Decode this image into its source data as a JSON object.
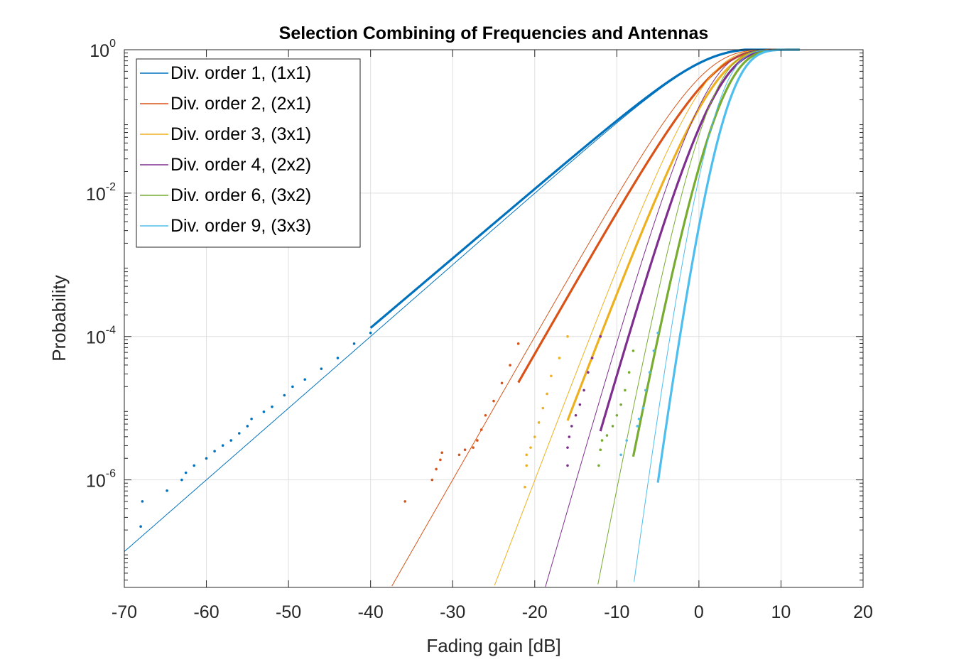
{
  "chart_data": {
    "type": "line",
    "title": "Selection Combining of Frequencies and Antennas",
    "xlabel": "Fading gain [dB]",
    "ylabel": "Probability",
    "xlim": [
      -70,
      20
    ],
    "ylim_log10": [
      -7.5,
      0
    ],
    "y_scale": "log",
    "grid": true,
    "legend_position": "top-left",
    "x_ticks": [
      "-70",
      "-60",
      "-50",
      "-40",
      "-30",
      "-20",
      "-10",
      "0",
      "10",
      "20"
    ],
    "y_ticks": [
      {
        "base": "10",
        "exp": "0"
      },
      {
        "base": "10",
        "exp": "-2"
      },
      {
        "base": "10",
        "exp": "-4"
      },
      {
        "base": "10",
        "exp": "-6"
      }
    ],
    "series": [
      {
        "name": "Div. order 1, (1x1)",
        "order": 1,
        "color": "#0072BD",
        "simulated_points": [
          [
            -68.0,
            -6.65
          ],
          [
            -67.8,
            -6.3
          ],
          [
            -64.8,
            -6.15
          ],
          [
            -63.0,
            -6.0
          ],
          [
            -62.5,
            -5.9
          ],
          [
            -61.5,
            -5.8
          ],
          [
            -60.0,
            -5.7
          ],
          [
            -59.0,
            -5.6
          ],
          [
            -58.0,
            -5.52
          ],
          [
            -57.0,
            -5.45
          ],
          [
            -56.0,
            -5.35
          ],
          [
            -55.0,
            -5.25
          ],
          [
            -54.5,
            -5.15
          ],
          [
            -53.0,
            -5.05
          ],
          [
            -52.0,
            -4.98
          ],
          [
            -50.5,
            -4.82
          ],
          [
            -49.5,
            -4.7
          ],
          [
            -48.0,
            -4.6
          ],
          [
            -46.0,
            -4.45
          ],
          [
            -44.0,
            -4.3
          ],
          [
            -42.0,
            -4.1
          ],
          [
            -40.0,
            -3.95
          ]
        ]
      },
      {
        "name": "Div. order 2, (2x1)",
        "order": 2,
        "color": "#D95319",
        "simulated_points": [
          [
            -35.8,
            -6.3
          ],
          [
            -32.5,
            -6.0
          ],
          [
            -32.0,
            -5.85
          ],
          [
            -31.5,
            -5.72
          ],
          [
            -31.3,
            -5.62
          ],
          [
            -29.2,
            -5.65
          ],
          [
            -28.5,
            -5.58
          ],
          [
            -27.5,
            -5.55
          ],
          [
            -27.0,
            -5.45
          ],
          [
            -26.5,
            -5.3
          ],
          [
            -26.0,
            -5.1
          ],
          [
            -25.0,
            -4.9
          ],
          [
            -24.0,
            -4.65
          ],
          [
            -23.0,
            -4.4
          ],
          [
            -22.0,
            -4.1
          ]
        ]
      },
      {
        "name": "Div. order 3, (3x1)",
        "order": 3,
        "color": "#EDB120",
        "simulated_points": [
          [
            -21.2,
            -6.1
          ],
          [
            -21.0,
            -5.8
          ],
          [
            -21.0,
            -5.65
          ],
          [
            -20.5,
            -5.55
          ],
          [
            -20.0,
            -5.4
          ],
          [
            -19.5,
            -5.2
          ],
          [
            -19.0,
            -5.0
          ],
          [
            -18.5,
            -4.8
          ],
          [
            -18.0,
            -4.55
          ],
          [
            -17.0,
            -4.3
          ],
          [
            -16.0,
            -4.0
          ]
        ]
      },
      {
        "name": "Div. order 4, (2x2)",
        "order": 4,
        "color": "#7E2F8E",
        "simulated_points": [
          [
            -16.0,
            -5.8
          ],
          [
            -16.0,
            -5.55
          ],
          [
            -15.8,
            -5.4
          ],
          [
            -15.5,
            -5.25
          ],
          [
            -15.0,
            -5.1
          ],
          [
            -14.5,
            -4.95
          ],
          [
            -14.0,
            -4.75
          ],
          [
            -13.5,
            -4.5
          ],
          [
            -13.0,
            -4.3
          ],
          [
            -12.0,
            -4.0
          ]
        ]
      },
      {
        "name": "Div. order 6, (3x2)",
        "order": 6,
        "color": "#77AC30",
        "simulated_points": [
          [
            -12.2,
            -5.8
          ],
          [
            -12.0,
            -5.58
          ],
          [
            -11.8,
            -5.45
          ],
          [
            -11.2,
            -5.38
          ],
          [
            -10.5,
            -5.25
          ],
          [
            -10.0,
            -5.1
          ],
          [
            -9.5,
            -4.95
          ],
          [
            -9.0,
            -4.75
          ],
          [
            -8.5,
            -4.5
          ],
          [
            -8.0,
            -4.2
          ]
        ]
      },
      {
        "name": "Div. order 9, (3x3)",
        "order": 9,
        "color": "#4DBEEE",
        "simulated_points": [
          [
            -9.5,
            -5.65
          ],
          [
            -8.8,
            -5.45
          ],
          [
            -7.5,
            -5.25
          ],
          [
            -7.3,
            -5.15
          ],
          [
            -6.8,
            -5.0
          ],
          [
            -6.5,
            -4.75
          ],
          [
            -6.0,
            -4.5
          ],
          [
            -5.5,
            -4.2
          ],
          [
            -5.0,
            -3.95
          ]
        ]
      }
    ]
  }
}
